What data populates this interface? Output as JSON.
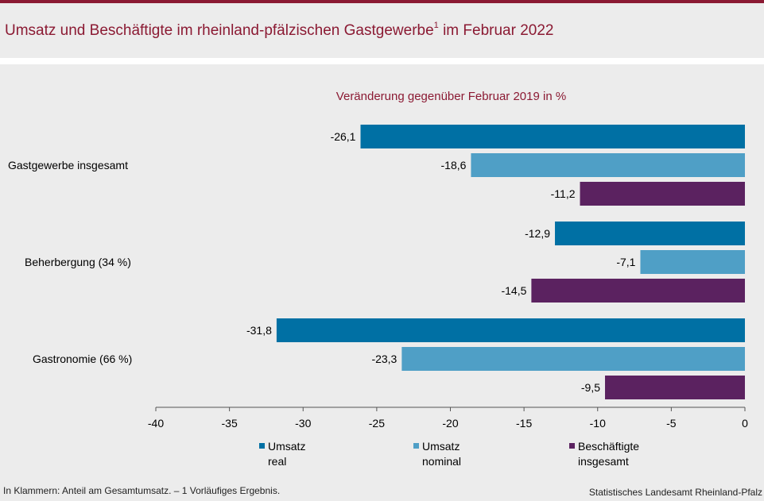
{
  "header": {
    "title": "Umsatz und Beschäftigte im rheinland-pfälzischen Gastgewerbe",
    "title_sup": "1",
    "title_suffix": " im Februar 2022"
  },
  "chart_data": {
    "type": "bar",
    "orientation": "horizontal",
    "title": "Veränderung gegenüber Februar 2019 in %",
    "categories": [
      "Gastgewerbe insgesamt",
      "Beherbergung (34 %)",
      "Gastronomie (66 %)"
    ],
    "series": [
      {
        "name": "Umsatz real",
        "legend_lines": [
          "Umsatz",
          "real"
        ],
        "color": "#0070a4",
        "values": [
          -26.1,
          -12.9,
          -31.8
        ],
        "labels": [
          "-26,1",
          "-12,9",
          "-31,8"
        ]
      },
      {
        "name": "Umsatz nominal",
        "legend_lines": [
          "Umsatz",
          "nominal"
        ],
        "color": "#4f9fc6",
        "values": [
          -18.6,
          -7.1,
          -23.3
        ],
        "labels": [
          "-18,6",
          "-7,1",
          "-23,3"
        ]
      },
      {
        "name": "Beschäftigte insgesamt",
        "legend_lines": [
          "Beschäftigte",
          "insgesamt"
        ],
        "color": "#5b2260",
        "values": [
          -11.2,
          -14.5,
          -9.5
        ],
        "labels": [
          "-11,2",
          "-14,5",
          "-9,5"
        ]
      }
    ],
    "xlim": [
      -40,
      0
    ],
    "xticks": [
      -40,
      -35,
      -30,
      -25,
      -20,
      -15,
      -10,
      -5,
      0
    ],
    "grid": false,
    "legend_position": "bottom"
  },
  "footer": {
    "note": "In Klammern: Anteil am Gesamtumsatz. – 1 Vorläufiges Ergebnis.",
    "source": "Statistisches Landesamt Rheinland-Pfalz"
  }
}
